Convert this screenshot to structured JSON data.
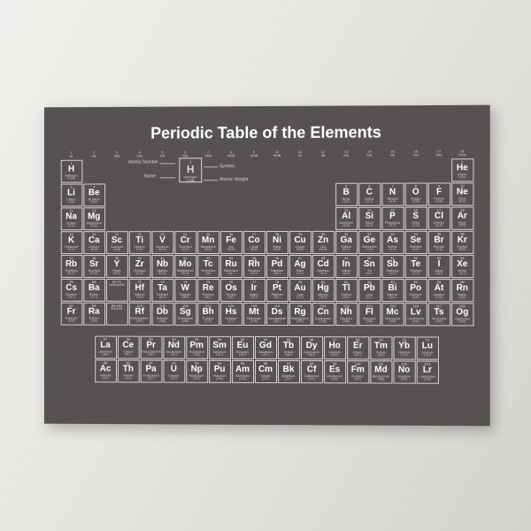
{
  "title": "Periodic Table of the Elements",
  "colors": {
    "poster_bg": "#555251",
    "text": "#ffffff",
    "cell_border": "rgba(255,255,255,0.75)",
    "muted": "#d8d6d4"
  },
  "group_labels": [
    "1\nIA",
    "2\nIIA",
    "3\nIIIB",
    "4\nIVB",
    "5\nVB",
    "6\nVIB",
    "7\nVIIB",
    "8\nVIIIB",
    "9\nVIIIB",
    "10\nVIIIB",
    "11\nIB",
    "12\nIIB",
    "13\nIIIA",
    "14\nIVA",
    "15\nVA",
    "16\nVIA",
    "17\nVIIA",
    "18\nVIIIA"
  ],
  "legend": {
    "example": {
      "num": "1",
      "sym": "H",
      "nm": "Hydrogen",
      "wt": "1.008"
    },
    "labels": {
      "atomic_number": "Atomic Number",
      "symbol": "Symbol",
      "name": "Name",
      "atomic_weight": "Atomic Weight"
    }
  },
  "main": [
    [
      {
        "n": "1",
        "s": "H",
        "m": "Hydrogen",
        "w": "1.008"
      },
      null,
      null,
      null,
      null,
      null,
      null,
      null,
      null,
      null,
      null,
      null,
      null,
      null,
      null,
      null,
      null,
      {
        "n": "2",
        "s": "He",
        "m": "Helium",
        "w": "4.003"
      }
    ],
    [
      {
        "n": "3",
        "s": "Li",
        "m": "Lithium",
        "w": "6.94"
      },
      {
        "n": "4",
        "s": "Be",
        "m": "Beryllium",
        "w": "9.012"
      },
      null,
      null,
      null,
      null,
      null,
      null,
      null,
      null,
      null,
      null,
      {
        "n": "5",
        "s": "B",
        "m": "Boron",
        "w": "10.81"
      },
      {
        "n": "6",
        "s": "C",
        "m": "Carbon",
        "w": "12.01"
      },
      {
        "n": "7",
        "s": "N",
        "m": "Nitrogen",
        "w": "14.01"
      },
      {
        "n": "8",
        "s": "O",
        "m": "Oxygen",
        "w": "16.00"
      },
      {
        "n": "9",
        "s": "F",
        "m": "Fluorine",
        "w": "19.00"
      },
      {
        "n": "10",
        "s": "Ne",
        "m": "Neon",
        "w": "20.18"
      }
    ],
    [
      {
        "n": "11",
        "s": "Na",
        "m": "Sodium",
        "w": "22.99"
      },
      {
        "n": "12",
        "s": "Mg",
        "m": "Magnesium",
        "w": "24.31"
      },
      null,
      null,
      null,
      null,
      null,
      null,
      null,
      null,
      null,
      null,
      {
        "n": "13",
        "s": "Al",
        "m": "Aluminium",
        "w": "26.98"
      },
      {
        "n": "14",
        "s": "Si",
        "m": "Silicon",
        "w": "28.09"
      },
      {
        "n": "15",
        "s": "P",
        "m": "Phosphorus",
        "w": "30.97"
      },
      {
        "n": "16",
        "s": "S",
        "m": "Sulfur",
        "w": "32.06"
      },
      {
        "n": "17",
        "s": "Cl",
        "m": "Chlorine",
        "w": "35.45"
      },
      {
        "n": "18",
        "s": "Ar",
        "m": "Argon",
        "w": "39.95"
      }
    ],
    [
      {
        "n": "19",
        "s": "K",
        "m": "Potassium",
        "w": "39.10"
      },
      {
        "n": "20",
        "s": "Ca",
        "m": "Calcium",
        "w": "40.08"
      },
      {
        "n": "21",
        "s": "Sc",
        "m": "Scandium",
        "w": "44.96"
      },
      {
        "n": "22",
        "s": "Ti",
        "m": "Titanium",
        "w": "47.87"
      },
      {
        "n": "23",
        "s": "V",
        "m": "Vanadium",
        "w": "50.94"
      },
      {
        "n": "24",
        "s": "Cr",
        "m": "Chromium",
        "w": "52.00"
      },
      {
        "n": "25",
        "s": "Mn",
        "m": "Manganese",
        "w": "54.94"
      },
      {
        "n": "26",
        "s": "Fe",
        "m": "Iron",
        "w": "55.85"
      },
      {
        "n": "27",
        "s": "Co",
        "m": "Cobalt",
        "w": "58.93"
      },
      {
        "n": "28",
        "s": "Ni",
        "m": "Nickel",
        "w": "58.69"
      },
      {
        "n": "29",
        "s": "Cu",
        "m": "Copper",
        "w": "63.55"
      },
      {
        "n": "30",
        "s": "Zn",
        "m": "Zinc",
        "w": "65.38"
      },
      {
        "n": "31",
        "s": "Ga",
        "m": "Gallium",
        "w": "69.72"
      },
      {
        "n": "32",
        "s": "Ge",
        "m": "Germanium",
        "w": "72.63"
      },
      {
        "n": "33",
        "s": "As",
        "m": "Arsenic",
        "w": "74.92"
      },
      {
        "n": "34",
        "s": "Se",
        "m": "Selenium",
        "w": "78.97"
      },
      {
        "n": "35",
        "s": "Br",
        "m": "Bromine",
        "w": "79.90"
      },
      {
        "n": "36",
        "s": "Kr",
        "m": "Krypton",
        "w": "83.80"
      }
    ],
    [
      {
        "n": "37",
        "s": "Rb",
        "m": "Rubidium",
        "w": "85.47"
      },
      {
        "n": "38",
        "s": "Sr",
        "m": "Strontium",
        "w": "87.62"
      },
      {
        "n": "39",
        "s": "Y",
        "m": "Yttrium",
        "w": "88.91"
      },
      {
        "n": "40",
        "s": "Zr",
        "m": "Zirconium",
        "w": "91.22"
      },
      {
        "n": "41",
        "s": "Nb",
        "m": "Niobium",
        "w": "92.91"
      },
      {
        "n": "42",
        "s": "Mo",
        "m": "Molybdenum",
        "w": "95.95"
      },
      {
        "n": "43",
        "s": "Tc",
        "m": "Technetium",
        "w": "(98)"
      },
      {
        "n": "44",
        "s": "Ru",
        "m": "Ruthenium",
        "w": "101.1"
      },
      {
        "n": "45",
        "s": "Rh",
        "m": "Rhodium",
        "w": "102.9"
      },
      {
        "n": "46",
        "s": "Pd",
        "m": "Palladium",
        "w": "106.4"
      },
      {
        "n": "47",
        "s": "Ag",
        "m": "Silver",
        "w": "107.9"
      },
      {
        "n": "48",
        "s": "Cd",
        "m": "Cadmium",
        "w": "112.4"
      },
      {
        "n": "49",
        "s": "In",
        "m": "Indium",
        "w": "114.8"
      },
      {
        "n": "50",
        "s": "Sn",
        "m": "Tin",
        "w": "118.7"
      },
      {
        "n": "51",
        "s": "Sb",
        "m": "Antimony",
        "w": "121.8"
      },
      {
        "n": "52",
        "s": "Te",
        "m": "Tellurium",
        "w": "127.6"
      },
      {
        "n": "53",
        "s": "I",
        "m": "Iodine",
        "w": "126.9"
      },
      {
        "n": "54",
        "s": "Xe",
        "m": "Xenon",
        "w": "131.3"
      }
    ],
    [
      {
        "n": "55",
        "s": "Cs",
        "m": "Caesium",
        "w": "132.9"
      },
      {
        "n": "56",
        "s": "Ba",
        "m": "Barium",
        "w": "137.3"
      },
      {
        "n": "57-71",
        "s": "",
        "m": "Lanthanoids",
        "w": ""
      },
      {
        "n": "72",
        "s": "Hf",
        "m": "Hafnium",
        "w": "178.5"
      },
      {
        "n": "73",
        "s": "Ta",
        "m": "Tantalum",
        "w": "180.9"
      },
      {
        "n": "74",
        "s": "W",
        "m": "Tungsten",
        "w": "183.8"
      },
      {
        "n": "75",
        "s": "Re",
        "m": "Rhenium",
        "w": "186.2"
      },
      {
        "n": "76",
        "s": "Os",
        "m": "Osmium",
        "w": "190.2"
      },
      {
        "n": "77",
        "s": "Ir",
        "m": "Iridium",
        "w": "192.2"
      },
      {
        "n": "78",
        "s": "Pt",
        "m": "Platinum",
        "w": "195.1"
      },
      {
        "n": "79",
        "s": "Au",
        "m": "Gold",
        "w": "197.0"
      },
      {
        "n": "80",
        "s": "Hg",
        "m": "Mercury",
        "w": "200.6"
      },
      {
        "n": "81",
        "s": "Tl",
        "m": "Thallium",
        "w": "204.4"
      },
      {
        "n": "82",
        "s": "Pb",
        "m": "Lead",
        "w": "207.2"
      },
      {
        "n": "83",
        "s": "Bi",
        "m": "Bismuth",
        "w": "209.0"
      },
      {
        "n": "84",
        "s": "Po",
        "m": "Polonium",
        "w": "(209)"
      },
      {
        "n": "85",
        "s": "At",
        "m": "Astatine",
        "w": "(210)"
      },
      {
        "n": "86",
        "s": "Rn",
        "m": "Radon",
        "w": "(222)"
      }
    ],
    [
      {
        "n": "87",
        "s": "Fr",
        "m": "Francium",
        "w": "(223)"
      },
      {
        "n": "88",
        "s": "Ra",
        "m": "Radium",
        "w": "(226)"
      },
      {
        "n": "89-103",
        "s": "",
        "m": "Actinoids",
        "w": ""
      },
      {
        "n": "104",
        "s": "Rf",
        "m": "Rutherfordium",
        "w": "(267)"
      },
      {
        "n": "105",
        "s": "Db",
        "m": "Dubnium",
        "w": "(268)"
      },
      {
        "n": "106",
        "s": "Sg",
        "m": "Seaborgium",
        "w": "(269)"
      },
      {
        "n": "107",
        "s": "Bh",
        "m": "Bohrium",
        "w": "(270)"
      },
      {
        "n": "108",
        "s": "Hs",
        "m": "Hassium",
        "w": "(277)"
      },
      {
        "n": "109",
        "s": "Mt",
        "m": "Meitnerium",
        "w": "(278)"
      },
      {
        "n": "110",
        "s": "Ds",
        "m": "Darmstadtium",
        "w": "(281)"
      },
      {
        "n": "111",
        "s": "Rg",
        "m": "Roentgenium",
        "w": "(282)"
      },
      {
        "n": "112",
        "s": "Cn",
        "m": "Copernicium",
        "w": "(285)"
      },
      {
        "n": "113",
        "s": "Nh",
        "m": "Nihonium",
        "w": "(286)"
      },
      {
        "n": "114",
        "s": "Fl",
        "m": "Flerovium",
        "w": "(289)"
      },
      {
        "n": "115",
        "s": "Mc",
        "m": "Moscovium",
        "w": "(290)"
      },
      {
        "n": "116",
        "s": "Lv",
        "m": "Livermorium",
        "w": "(293)"
      },
      {
        "n": "117",
        "s": "Ts",
        "m": "Tennessine",
        "w": "(294)"
      },
      {
        "n": "118",
        "s": "Og",
        "m": "Oganesson",
        "w": "(294)"
      }
    ]
  ],
  "fblock": [
    [
      {
        "n": "57",
        "s": "La",
        "m": "Lanthanum",
        "w": "138.9"
      },
      {
        "n": "58",
        "s": "Ce",
        "m": "Cerium",
        "w": "140.1"
      },
      {
        "n": "59",
        "s": "Pr",
        "m": "Praseodymium",
        "w": "140.9"
      },
      {
        "n": "60",
        "s": "Nd",
        "m": "Neodymium",
        "w": "144.2"
      },
      {
        "n": "61",
        "s": "Pm",
        "m": "Promethium",
        "w": "(145)"
      },
      {
        "n": "62",
        "s": "Sm",
        "m": "Samarium",
        "w": "150.4"
      },
      {
        "n": "63",
        "s": "Eu",
        "m": "Europium",
        "w": "152.0"
      },
      {
        "n": "64",
        "s": "Gd",
        "m": "Gadolinium",
        "w": "157.3"
      },
      {
        "n": "65",
        "s": "Tb",
        "m": "Terbium",
        "w": "158.9"
      },
      {
        "n": "66",
        "s": "Dy",
        "m": "Dysprosium",
        "w": "162.5"
      },
      {
        "n": "67",
        "s": "Ho",
        "m": "Holmium",
        "w": "164.9"
      },
      {
        "n": "68",
        "s": "Er",
        "m": "Erbium",
        "w": "167.3"
      },
      {
        "n": "69",
        "s": "Tm",
        "m": "Thulium",
        "w": "168.9"
      },
      {
        "n": "70",
        "s": "Yb",
        "m": "Ytterbium",
        "w": "173.0"
      },
      {
        "n": "71",
        "s": "Lu",
        "m": "Lutetium",
        "w": "175.0"
      }
    ],
    [
      {
        "n": "89",
        "s": "Ac",
        "m": "Actinium",
        "w": "(227)"
      },
      {
        "n": "90",
        "s": "Th",
        "m": "Thorium",
        "w": "232.0"
      },
      {
        "n": "91",
        "s": "Pa",
        "m": "Protactinium",
        "w": "231.0"
      },
      {
        "n": "92",
        "s": "U",
        "m": "Uranium",
        "w": "238.0"
      },
      {
        "n": "93",
        "s": "Np",
        "m": "Neptunium",
        "w": "(237)"
      },
      {
        "n": "94",
        "s": "Pu",
        "m": "Plutonium",
        "w": "(244)"
      },
      {
        "n": "95",
        "s": "Am",
        "m": "Americium",
        "w": "(243)"
      },
      {
        "n": "96",
        "s": "Cm",
        "m": "Curium",
        "w": "(247)"
      },
      {
        "n": "97",
        "s": "Bk",
        "m": "Berkelium",
        "w": "(247)"
      },
      {
        "n": "98",
        "s": "Cf",
        "m": "Californium",
        "w": "(251)"
      },
      {
        "n": "99",
        "s": "Es",
        "m": "Einsteinium",
        "w": "(252)"
      },
      {
        "n": "100",
        "s": "Fm",
        "m": "Fermium",
        "w": "(257)"
      },
      {
        "n": "101",
        "s": "Md",
        "m": "Mendelevium",
        "w": "(258)"
      },
      {
        "n": "102",
        "s": "No",
        "m": "Nobelium",
        "w": "(259)"
      },
      {
        "n": "103",
        "s": "Lr",
        "m": "Lawrencium",
        "w": "(266)"
      }
    ]
  ]
}
